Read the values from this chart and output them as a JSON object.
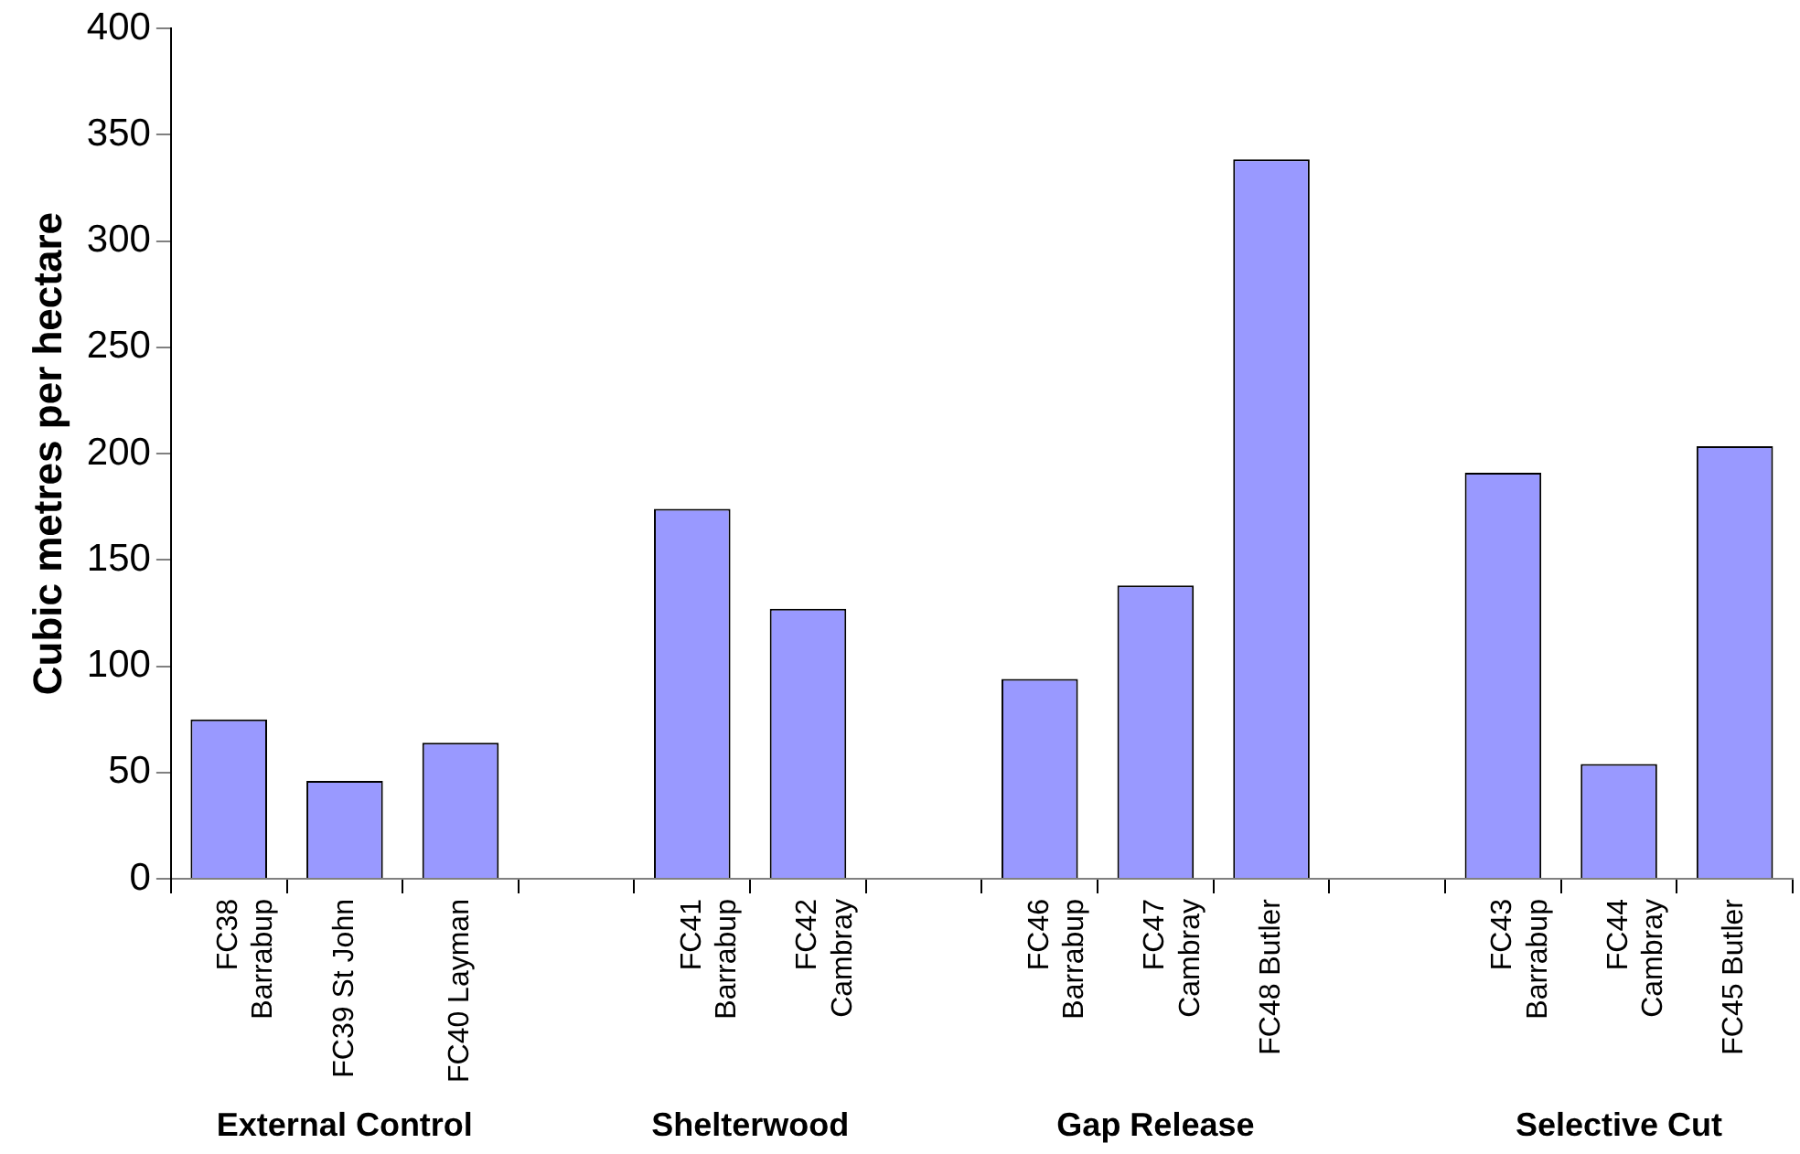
{
  "chart_data": {
    "type": "bar",
    "ylabel": "Cubic metres per hectare",
    "categories": [
      "FC38\nBarrabup",
      "FC39 St John",
      "FC40 Layman",
      null,
      "FC41\nBarrabup",
      "FC42\nCambray",
      null,
      "FC46\nBarrabup",
      "FC47\nCambray",
      "FC48 Butler",
      null,
      "FC43\nBarrabup",
      "FC44\nCambray",
      "FC45 Butler"
    ],
    "values": [
      75,
      46,
      64,
      null,
      174,
      127,
      null,
      94,
      138,
      338.5,
      null,
      191,
      54,
      203.5
    ],
    "color": "#9999ff",
    "ylim": [
      0,
      400
    ],
    "yticks": [
      0,
      50,
      100,
      150,
      200,
      250,
      300,
      350,
      400
    ],
    "grid": false,
    "legend": false,
    "annotations": [
      "External Control",
      "Shelterwood",
      "Gap Release",
      "Selective Cut"
    ]
  }
}
